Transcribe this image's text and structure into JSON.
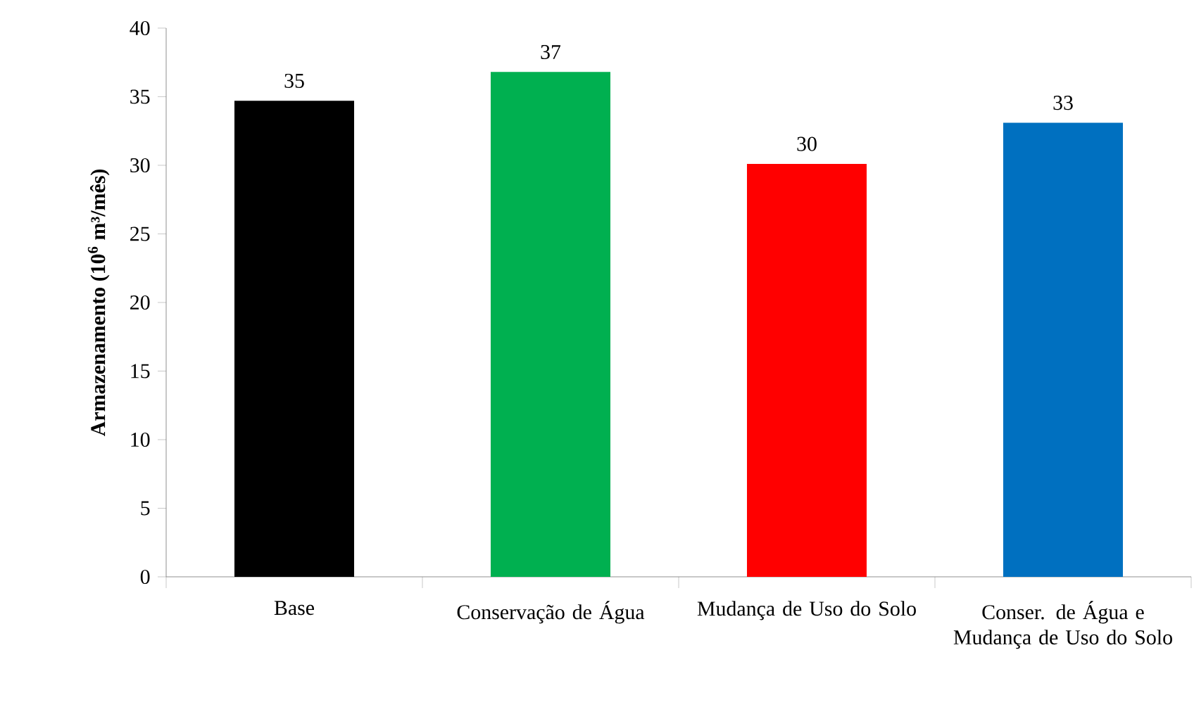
{
  "chart_data": {
    "type": "bar",
    "ylabel": "Armazenamento (10$^{6}$ m³/mês)",
    "categories": [
      "Base",
      "Conservação de Água",
      "Mudança de Uso do Solo",
      "Conser. de Água e Mudança de Uso do Solo"
    ],
    "values": [
      34.7,
      36.8,
      30.1,
      33.1
    ],
    "value_labels": [
      "35",
      "37",
      "30",
      "33"
    ],
    "colors": [
      "#000000",
      "#00b050",
      "#ff0000",
      "#0070c0"
    ],
    "ylim": [
      0,
      40
    ],
    "yticks": [
      0,
      5,
      10,
      15,
      20,
      25,
      30,
      35,
      40
    ],
    "grid": false
  }
}
